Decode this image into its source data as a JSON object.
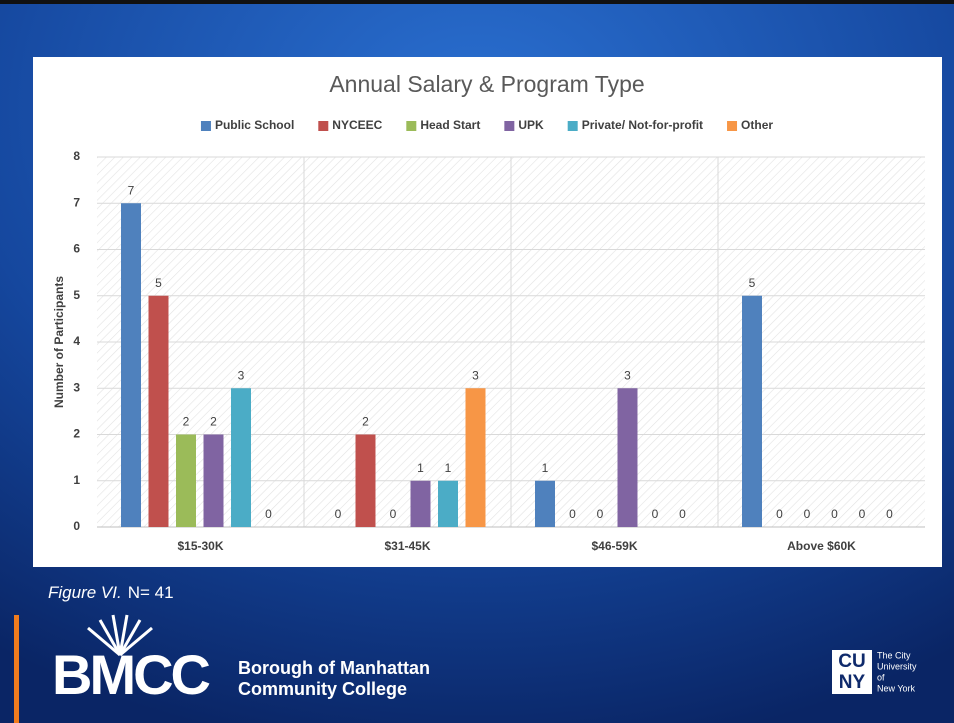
{
  "chart_data": {
    "type": "bar",
    "title": "Annual Salary & Program Type",
    "categories": [
      "$15-30K",
      "$31-45K",
      "$46-59K",
      "Above $60K"
    ],
    "series": [
      {
        "name": "Public School",
        "color": "#4f81bd",
        "values": [
          7,
          0,
          1,
          5
        ]
      },
      {
        "name": "NYCEEC",
        "color": "#c0504d",
        "values": [
          5,
          2,
          0,
          0
        ]
      },
      {
        "name": "Head Start",
        "color": "#9bbb59",
        "values": [
          2,
          0,
          0,
          0
        ]
      },
      {
        "name": "UPK",
        "color": "#8064a2",
        "values": [
          2,
          1,
          3,
          0
        ]
      },
      {
        "name": "Private/ Not-for-profit",
        "color": "#4bacc6",
        "values": [
          3,
          1,
          0,
          0
        ]
      },
      {
        "name": "Other",
        "color": "#f79646",
        "values": [
          0,
          3,
          0,
          0
        ]
      }
    ],
    "y_label": "Number of Participants",
    "ylim": [
      0,
      8
    ],
    "yticks": [
      0,
      1,
      2,
      3,
      4,
      5,
      6,
      7,
      8
    ],
    "grid": true,
    "legend": "top"
  },
  "caption": {
    "figure": "Figure VI.",
    "n": "N= 41"
  },
  "logos": {
    "bmcc": "BMCC",
    "bmcc_line1": "Borough of Manhattan",
    "bmcc_line2": "Community College",
    "cuny_top": "CU",
    "cuny_bottom": "NY",
    "cuny_text": [
      "The City",
      "University",
      "of",
      "New York"
    ]
  }
}
